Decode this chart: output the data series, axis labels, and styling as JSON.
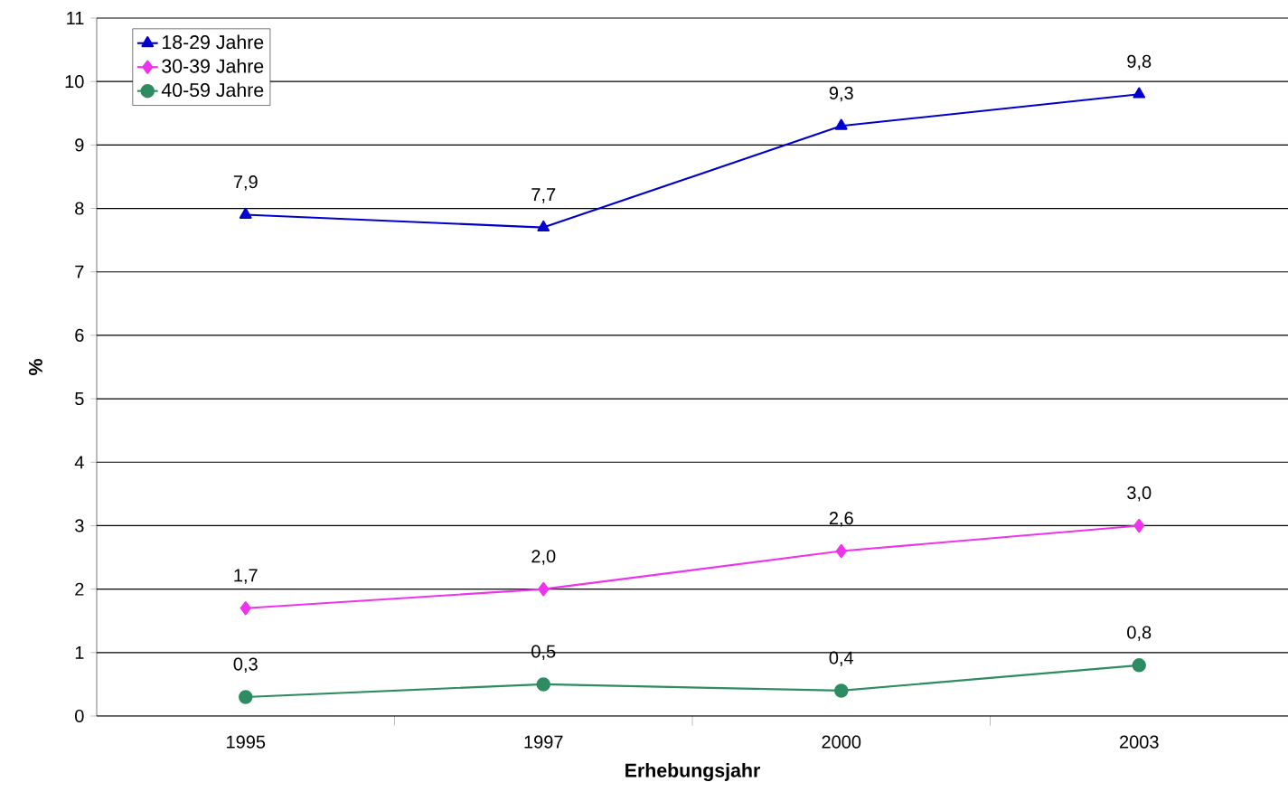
{
  "chart_data": {
    "type": "line",
    "xlabel": "Erhebungsjahr",
    "ylabel": "%",
    "categories": [
      "1995",
      "1997",
      "2000",
      "2003"
    ],
    "series": [
      {
        "name": "18-29 Jahre",
        "color": "#0000cc",
        "marker": "triangle",
        "values": [
          7.9,
          7.7,
          9.3,
          9.8
        ],
        "value_labels": [
          "7,9",
          "7,7",
          "9,3",
          "9,8"
        ]
      },
      {
        "name": "30-39 Jahre",
        "color": "#ee33ee",
        "marker": "diamond",
        "values": [
          1.7,
          2.0,
          2.6,
          3.0
        ],
        "value_labels": [
          "1,7",
          "2,0",
          "2,6",
          "3,0"
        ]
      },
      {
        "name": "40-59 Jahre",
        "color": "#2e8b62",
        "marker": "circle",
        "values": [
          0.3,
          0.5,
          0.4,
          0.8
        ],
        "value_labels": [
          "0,3",
          "0,5",
          "0,4",
          "0,8"
        ]
      }
    ],
    "ylim": [
      0,
      11
    ],
    "yticks": [
      0,
      1,
      2,
      3,
      4,
      5,
      6,
      7,
      8,
      9,
      10,
      11
    ],
    "grid": "y",
    "legend": "top left",
    "line_style": "solid"
  }
}
